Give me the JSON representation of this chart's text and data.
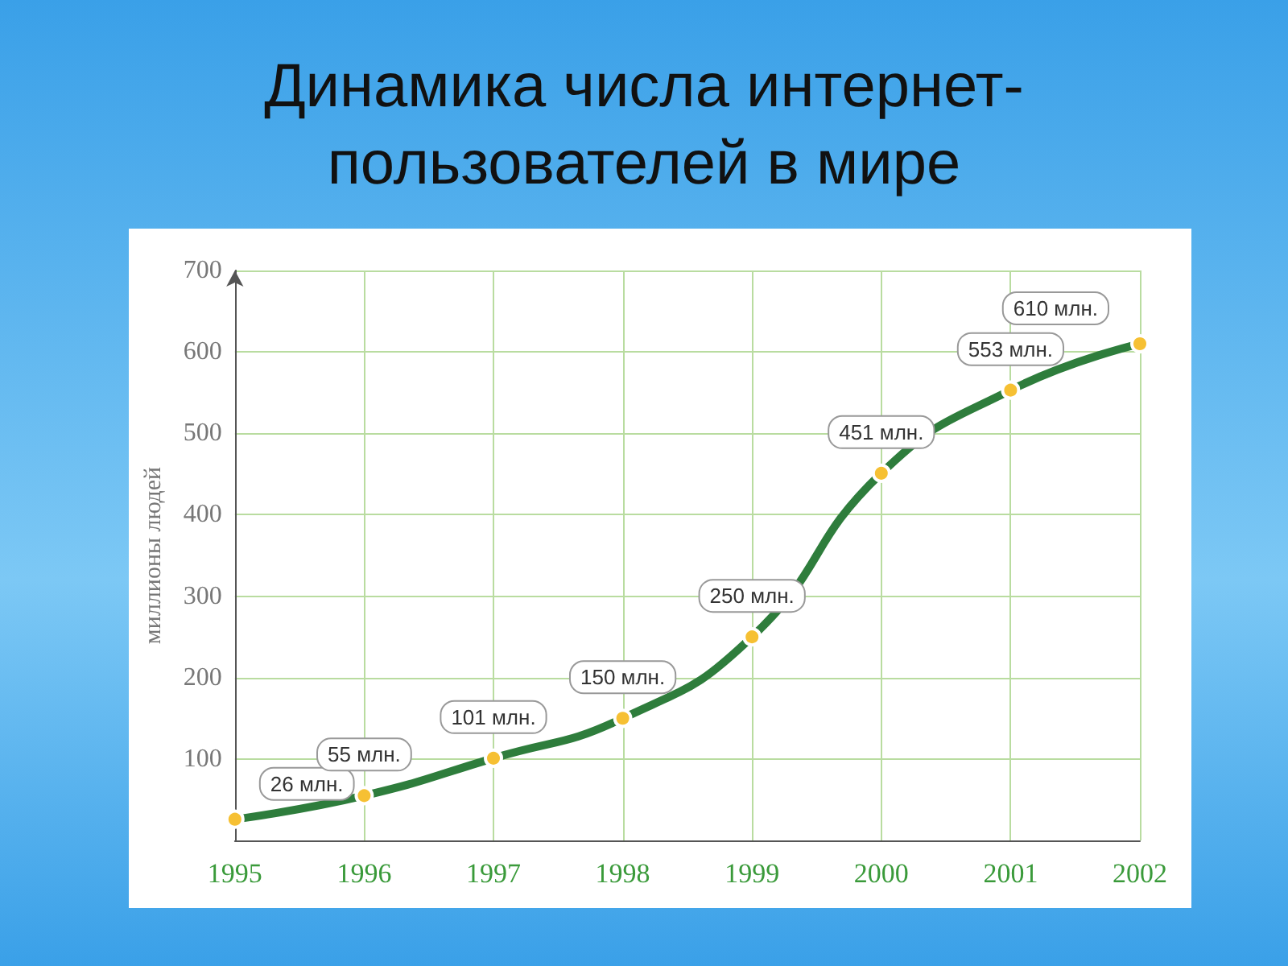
{
  "chart_data": {
    "type": "line",
    "title": "Динамика числа интернет-\nпользователей в мире",
    "ylabel": "миллионы людей",
    "categories": [
      "1995",
      "1996",
      "1997",
      "1998",
      "1999",
      "2000",
      "2001",
      "2002"
    ],
    "series": [
      {
        "color": "#2e7d3c",
        "values": [
          26,
          55,
          101,
          150,
          250,
          451,
          553,
          610
        ],
        "value_labels": [
          "26 млн.",
          "55 млн.",
          "101 млн.",
          "150 млн.",
          "250 млн.",
          "451 млн.",
          "553 млн.",
          "610 млн."
        ]
      }
    ],
    "ylim": [
      0,
      700
    ],
    "yticks": [
      100,
      200,
      300,
      400,
      500,
      600,
      700
    ],
    "grid": true,
    "marker": "circle",
    "line_style": "solid"
  }
}
